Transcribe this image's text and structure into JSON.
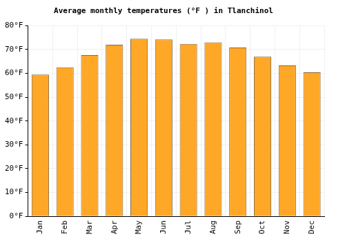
{
  "chart_data": {
    "type": "bar",
    "title": "Average monthly temperatures (°F ) in Tlanchinol",
    "categories": [
      "Jan",
      "Feb",
      "Mar",
      "Apr",
      "May",
      "Jun",
      "Jul",
      "Aug",
      "Sep",
      "Oct",
      "Nov",
      "Dec"
    ],
    "values": [
      59.5,
      62.5,
      67.6,
      72.0,
      74.5,
      74.2,
      72.3,
      73.0,
      70.8,
      67.0,
      63.3,
      60.4
    ],
    "color": "#ffa726",
    "ylim": [
      0,
      80
    ],
    "yticks": [
      {
        "value": 0,
        "label": "0°F"
      },
      {
        "value": 10,
        "label": "10°F"
      },
      {
        "value": 20,
        "label": "20°F"
      },
      {
        "value": 30,
        "label": "30°F"
      },
      {
        "value": 40,
        "label": "40°F"
      },
      {
        "value": 50,
        "label": "50°F"
      },
      {
        "value": 60,
        "label": "60°F"
      },
      {
        "value": 70,
        "label": "70°F"
      },
      {
        "value": 80,
        "label": "80°F"
      }
    ],
    "grid": true
  }
}
